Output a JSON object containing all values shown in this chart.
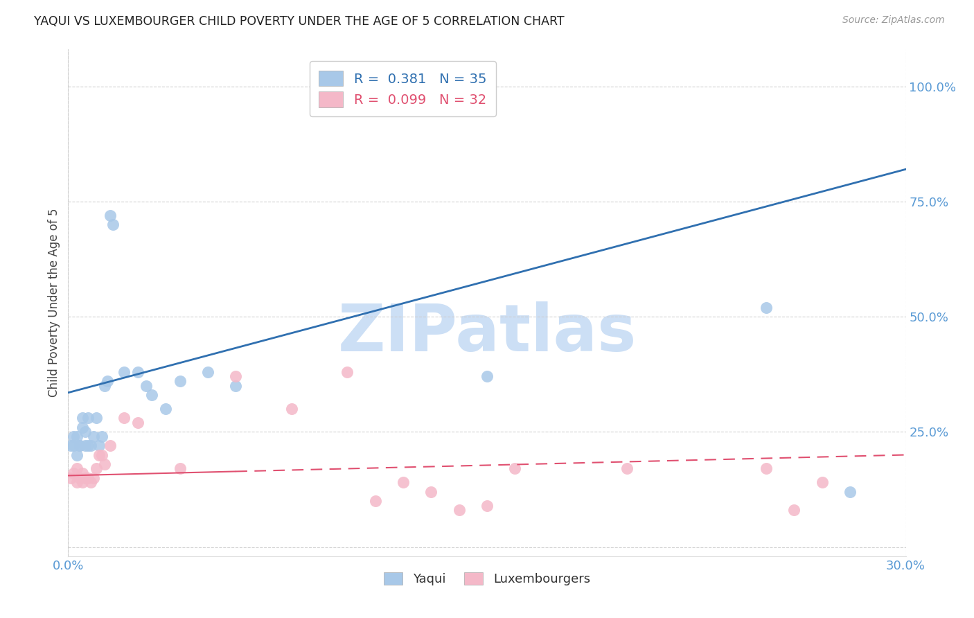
{
  "title": "YAQUI VS LUXEMBOURGER CHILD POVERTY UNDER THE AGE OF 5 CORRELATION CHART",
  "source": "Source: ZipAtlas.com",
  "ylabel": "Child Poverty Under the Age of 5",
  "xmin": 0.0,
  "xmax": 0.3,
  "ymin": -0.02,
  "ymax": 1.08,
  "yticks": [
    0.0,
    0.25,
    0.5,
    0.75,
    1.0
  ],
  "ytick_labels": [
    "",
    "25.0%",
    "50.0%",
    "75.0%",
    "100.0%"
  ],
  "blue_R": 0.381,
  "blue_N": 35,
  "pink_R": 0.099,
  "pink_N": 32,
  "blue_color": "#a8c8e8",
  "pink_color": "#f4b8c8",
  "blue_line_color": "#3070b0",
  "pink_line_color": "#e05070",
  "watermark": "ZIPatlas",
  "watermark_color": "#ccdff5",
  "legend_label_blue": "Yaqui",
  "legend_label_pink": "Luxembourgers",
  "blue_x": [
    0.001,
    0.002,
    0.002,
    0.003,
    0.003,
    0.004,
    0.004,
    0.005,
    0.005,
    0.006,
    0.006,
    0.007,
    0.007,
    0.008,
    0.009,
    0.01,
    0.011,
    0.012,
    0.013,
    0.014,
    0.015,
    0.016,
    0.02,
    0.025,
    0.028,
    0.03,
    0.035,
    0.04,
    0.05,
    0.06,
    0.1,
    0.11,
    0.15,
    0.25,
    0.28
  ],
  "blue_y": [
    0.22,
    0.24,
    0.22,
    0.2,
    0.24,
    0.22,
    0.22,
    0.28,
    0.26,
    0.25,
    0.22,
    0.28,
    0.22,
    0.22,
    0.24,
    0.28,
    0.22,
    0.24,
    0.35,
    0.36,
    0.72,
    0.7,
    0.38,
    0.38,
    0.35,
    0.33,
    0.3,
    0.36,
    0.38,
    0.35,
    0.99,
    0.99,
    0.37,
    0.52,
    0.12
  ],
  "pink_x": [
    0.001,
    0.002,
    0.003,
    0.003,
    0.004,
    0.005,
    0.005,
    0.006,
    0.007,
    0.008,
    0.009,
    0.01,
    0.011,
    0.012,
    0.013,
    0.015,
    0.02,
    0.025,
    0.04,
    0.06,
    0.08,
    0.1,
    0.11,
    0.12,
    0.13,
    0.14,
    0.15,
    0.16,
    0.2,
    0.25,
    0.26,
    0.27
  ],
  "pink_y": [
    0.15,
    0.16,
    0.17,
    0.14,
    0.15,
    0.16,
    0.14,
    0.15,
    0.15,
    0.14,
    0.15,
    0.17,
    0.2,
    0.2,
    0.18,
    0.22,
    0.28,
    0.27,
    0.17,
    0.37,
    0.3,
    0.38,
    0.1,
    0.14,
    0.12,
    0.08,
    0.09,
    0.17,
    0.17,
    0.17,
    0.08,
    0.14
  ],
  "blue_trend_x": [
    0.0,
    0.3
  ],
  "blue_trend_y": [
    0.335,
    0.82
  ],
  "pink_trend_x": [
    0.0,
    0.3
  ],
  "pink_trend_y": [
    0.155,
    0.2
  ],
  "background_color": "#ffffff",
  "tick_color": "#5b9bd5",
  "grid_color": "#cccccc"
}
